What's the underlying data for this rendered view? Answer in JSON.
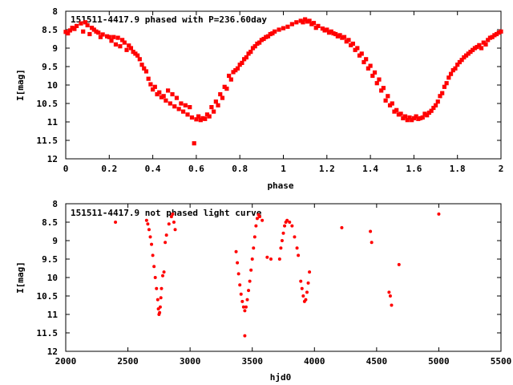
{
  "chart_data": [
    {
      "type": "scatter",
      "title": "151511-4417.9 phased with P=236.60day",
      "xlabel": "phase",
      "ylabel": "I[mag]",
      "xlim": [
        0,
        2
      ],
      "ylim": [
        12,
        8
      ],
      "y_inverted": true,
      "grid": false,
      "legend": "none",
      "marker_color": "#ff0000",
      "xticks": [
        "0",
        "0.2",
        "0.4",
        "0.6",
        "0.8",
        "1",
        "1.2",
        "1.4",
        "1.6",
        "1.8",
        "2"
      ],
      "yticks": [
        "8",
        "8.5",
        "9",
        "9.5",
        "10",
        "10.5",
        "11",
        "11.5",
        "12"
      ],
      "series": [
        {
          "points": [
            [
              0.0,
              8.56
            ],
            [
              0.02,
              8.52
            ],
            [
              0.03,
              8.45
            ],
            [
              0.05,
              8.4
            ],
            [
              0.07,
              8.33
            ],
            [
              0.09,
              8.3
            ],
            [
              0.1,
              8.38
            ],
            [
              0.12,
              8.45
            ],
            [
              0.13,
              8.5
            ],
            [
              0.15,
              8.58
            ],
            [
              0.17,
              8.63
            ],
            [
              0.19,
              8.68
            ],
            [
              0.2,
              8.7
            ],
            [
              0.22,
              8.7
            ],
            [
              0.24,
              8.72
            ],
            [
              0.26,
              8.78
            ],
            [
              0.27,
              8.85
            ],
            [
              0.29,
              8.93
            ],
            [
              0.3,
              9.0
            ],
            [
              0.31,
              9.1
            ],
            [
              0.33,
              9.2
            ],
            [
              0.34,
              9.3
            ],
            [
              0.35,
              9.45
            ],
            [
              0.37,
              9.63
            ],
            [
              0.38,
              9.83
            ],
            [
              0.39,
              9.98
            ],
            [
              0.4,
              10.12
            ],
            [
              0.42,
              10.25
            ],
            [
              0.44,
              10.33
            ],
            [
              0.46,
              10.42
            ],
            [
              0.48,
              10.5
            ],
            [
              0.5,
              10.58
            ],
            [
              0.52,
              10.65
            ],
            [
              0.54,
              10.72
            ],
            [
              0.56,
              10.8
            ],
            [
              0.58,
              10.88
            ],
            [
              0.6,
              10.93
            ],
            [
              0.62,
              10.95
            ],
            [
              0.64,
              10.92
            ],
            [
              0.66,
              10.85
            ],
            [
              0.68,
              10.72
            ],
            [
              0.7,
              10.55
            ],
            [
              0.72,
              10.35
            ],
            [
              0.74,
              10.1
            ],
            [
              0.76,
              9.85
            ],
            [
              0.78,
              9.6
            ],
            [
              0.8,
              9.45
            ],
            [
              0.82,
              9.3
            ],
            [
              0.84,
              9.15
            ],
            [
              0.86,
              9.0
            ],
            [
              0.88,
              8.88
            ],
            [
              0.9,
              8.78
            ],
            [
              0.92,
              8.7
            ],
            [
              0.94,
              8.62
            ],
            [
              0.96,
              8.55
            ],
            [
              0.98,
              8.5
            ],
            [
              1.0,
              8.46
            ],
            [
              1.02,
              8.42
            ],
            [
              1.04,
              8.35
            ],
            [
              1.06,
              8.3
            ],
            [
              1.08,
              8.26
            ],
            [
              1.1,
              8.22
            ],
            [
              1.12,
              8.26
            ],
            [
              1.14,
              8.32
            ],
            [
              1.16,
              8.4
            ],
            [
              1.18,
              8.47
            ],
            [
              1.2,
              8.5
            ],
            [
              1.22,
              8.55
            ],
            [
              1.24,
              8.62
            ],
            [
              1.26,
              8.65
            ],
            [
              1.28,
              8.7
            ],
            [
              1.3,
              8.78
            ],
            [
              1.32,
              8.88
            ],
            [
              1.34,
              9.0
            ],
            [
              1.36,
              9.15
            ],
            [
              1.38,
              9.3
            ],
            [
              1.4,
              9.48
            ],
            [
              1.42,
              9.66
            ],
            [
              1.44,
              9.85
            ],
            [
              1.46,
              10.08
            ],
            [
              1.48,
              10.3
            ],
            [
              1.5,
              10.5
            ],
            [
              1.52,
              10.68
            ],
            [
              1.54,
              10.78
            ],
            [
              1.56,
              10.85
            ],
            [
              1.58,
              10.88
            ],
            [
              1.6,
              10.9
            ],
            [
              1.62,
              10.92
            ],
            [
              1.64,
              10.88
            ],
            [
              1.66,
              10.82
            ],
            [
              1.68,
              10.7
            ],
            [
              1.7,
              10.55
            ],
            [
              1.72,
              10.3
            ],
            [
              1.74,
              10.05
            ],
            [
              1.76,
              9.8
            ],
            [
              1.78,
              9.6
            ],
            [
              1.8,
              9.45
            ],
            [
              1.82,
              9.32
            ],
            [
              1.84,
              9.2
            ],
            [
              1.86,
              9.1
            ],
            [
              1.88,
              9.0
            ],
            [
              1.9,
              8.92
            ],
            [
              1.92,
              8.85
            ],
            [
              1.94,
              8.78
            ],
            [
              1.96,
              8.7
            ],
            [
              1.98,
              8.62
            ],
            [
              2.0,
              8.55
            ],
            [
              0.01,
              8.6
            ],
            [
              0.04,
              8.48
            ],
            [
              0.08,
              8.55
            ],
            [
              0.11,
              8.62
            ],
            [
              0.14,
              8.55
            ],
            [
              0.16,
              8.7
            ],
            [
              0.21,
              8.8
            ],
            [
              0.23,
              8.9
            ],
            [
              0.25,
              8.95
            ],
            [
              0.28,
              9.05
            ],
            [
              0.32,
              9.15
            ],
            [
              0.36,
              9.55
            ],
            [
              0.41,
              10.05
            ],
            [
              0.43,
              10.2
            ],
            [
              0.45,
              10.3
            ],
            [
              0.47,
              10.15
            ],
            [
              0.49,
              10.25
            ],
            [
              0.51,
              10.35
            ],
            [
              0.53,
              10.5
            ],
            [
              0.55,
              10.55
            ],
            [
              0.57,
              10.6
            ],
            [
              0.59,
              11.58
            ],
            [
              0.61,
              10.85
            ],
            [
              0.63,
              10.9
            ],
            [
              0.65,
              10.8
            ],
            [
              0.67,
              10.6
            ],
            [
              0.69,
              10.45
            ],
            [
              0.71,
              10.25
            ],
            [
              0.73,
              10.05
            ],
            [
              0.75,
              9.75
            ],
            [
              0.77,
              9.65
            ],
            [
              0.79,
              9.55
            ],
            [
              0.81,
              9.4
            ],
            [
              0.83,
              9.25
            ],
            [
              0.85,
              9.1
            ],
            [
              0.87,
              8.95
            ],
            [
              0.89,
              8.85
            ],
            [
              0.91,
              8.75
            ],
            [
              0.93,
              8.68
            ],
            [
              0.95,
              8.6
            ],
            [
              1.09,
              8.3
            ],
            [
              1.11,
              8.28
            ],
            [
              1.13,
              8.35
            ],
            [
              1.15,
              8.45
            ],
            [
              1.19,
              8.52
            ],
            [
              1.21,
              8.58
            ],
            [
              1.23,
              8.6
            ],
            [
              1.25,
              8.68
            ],
            [
              1.27,
              8.72
            ],
            [
              1.29,
              8.82
            ],
            [
              1.31,
              8.92
            ],
            [
              1.33,
              9.05
            ],
            [
              1.35,
              9.2
            ],
            [
              1.37,
              9.38
            ],
            [
              1.39,
              9.55
            ],
            [
              1.41,
              9.75
            ],
            [
              1.43,
              9.95
            ],
            [
              1.45,
              10.15
            ],
            [
              1.47,
              10.42
            ],
            [
              1.49,
              10.55
            ],
            [
              1.51,
              10.72
            ],
            [
              1.53,
              10.8
            ],
            [
              1.55,
              10.9
            ],
            [
              1.57,
              10.95
            ],
            [
              1.59,
              10.95
            ],
            [
              1.61,
              10.85
            ],
            [
              1.63,
              10.9
            ],
            [
              1.65,
              10.78
            ],
            [
              1.67,
              10.75
            ],
            [
              1.69,
              10.62
            ],
            [
              1.71,
              10.45
            ],
            [
              1.73,
              10.22
            ],
            [
              1.75,
              9.95
            ],
            [
              1.77,
              9.7
            ],
            [
              1.79,
              9.55
            ],
            [
              1.81,
              9.38
            ],
            [
              1.83,
              9.25
            ],
            [
              1.85,
              9.15
            ],
            [
              1.87,
              9.05
            ],
            [
              1.89,
              8.97
            ],
            [
              1.91,
              9.0
            ],
            [
              1.93,
              8.9
            ],
            [
              1.95,
              8.72
            ],
            [
              1.97,
              8.65
            ],
            [
              1.99,
              8.58
            ]
          ]
        }
      ]
    },
    {
      "type": "scatter",
      "title": "151511-4417.9 not phased light curve",
      "xlabel": "hjd0",
      "ylabel": "I[mag]",
      "xlim": [
        2000,
        5500
      ],
      "ylim": [
        12,
        8
      ],
      "y_inverted": true,
      "grid": false,
      "legend": "none",
      "marker_color": "#ff0000",
      "xticks": [
        "2000",
        "2500",
        "3000",
        "3500",
        "4000",
        "4500",
        "5000",
        "5500"
      ],
      "yticks": [
        "8",
        "8.5",
        "9",
        "9.5",
        "10",
        "10.5",
        "11",
        "11.5",
        "12"
      ],
      "series": [
        {
          "points": [
            [
              2400,
              8.5
            ],
            [
              2650,
              8.45
            ],
            [
              2660,
              8.55
            ],
            [
              2670,
              8.7
            ],
            [
              2680,
              8.9
            ],
            [
              2690,
              9.1
            ],
            [
              2700,
              9.4
            ],
            [
              2710,
              9.7
            ],
            [
              2720,
              10.0
            ],
            [
              2730,
              10.3
            ],
            [
              2740,
              10.6
            ],
            [
              2745,
              10.85
            ],
            [
              2750,
              11.0
            ],
            [
              2755,
              10.95
            ],
            [
              2760,
              10.8
            ],
            [
              2765,
              10.55
            ],
            [
              2770,
              10.3
            ],
            [
              2780,
              9.95
            ],
            [
              2790,
              9.85
            ],
            [
              2800,
              9.05
            ],
            [
              2810,
              8.85
            ],
            [
              2830,
              8.55
            ],
            [
              2850,
              8.35
            ],
            [
              2860,
              8.28
            ],
            [
              2870,
              8.5
            ],
            [
              2880,
              8.7
            ],
            [
              3370,
              9.3
            ],
            [
              3380,
              9.6
            ],
            [
              3390,
              9.9
            ],
            [
              3400,
              10.2
            ],
            [
              3410,
              10.45
            ],
            [
              3420,
              10.65
            ],
            [
              3430,
              10.8
            ],
            [
              3440,
              10.9
            ],
            [
              3450,
              10.8
            ],
            [
              3460,
              10.6
            ],
            [
              3470,
              10.35
            ],
            [
              3480,
              10.1
            ],
            [
              3490,
              9.8
            ],
            [
              3500,
              9.5
            ],
            [
              3510,
              9.2
            ],
            [
              3520,
              8.9
            ],
            [
              3530,
              8.6
            ],
            [
              3540,
              8.4
            ],
            [
              3550,
              8.3
            ],
            [
              3560,
              8.35
            ],
            [
              3580,
              8.45
            ],
            [
              3440,
              11.58
            ],
            [
              3620,
              9.45
            ],
            [
              3650,
              9.5
            ],
            [
              3720,
              9.5
            ],
            [
              3730,
              9.2
            ],
            [
              3740,
              9.0
            ],
            [
              3750,
              8.8
            ],
            [
              3760,
              8.6
            ],
            [
              3770,
              8.5
            ],
            [
              3780,
              8.45
            ],
            [
              3800,
              8.5
            ],
            [
              3820,
              8.6
            ],
            [
              3840,
              8.9
            ],
            [
              3860,
              9.2
            ],
            [
              3870,
              9.4
            ],
            [
              3890,
              10.1
            ],
            [
              3900,
              10.3
            ],
            [
              3910,
              10.5
            ],
            [
              3920,
              10.65
            ],
            [
              3930,
              10.6
            ],
            [
              3940,
              10.4
            ],
            [
              3950,
              10.15
            ],
            [
              3960,
              9.85
            ],
            [
              4220,
              8.65
            ],
            [
              4450,
              8.75
            ],
            [
              4460,
              9.05
            ],
            [
              4600,
              10.4
            ],
            [
              4610,
              10.5
            ],
            [
              4620,
              10.75
            ],
            [
              4680,
              9.65
            ],
            [
              5000,
              8.28
            ]
          ]
        }
      ]
    }
  ]
}
